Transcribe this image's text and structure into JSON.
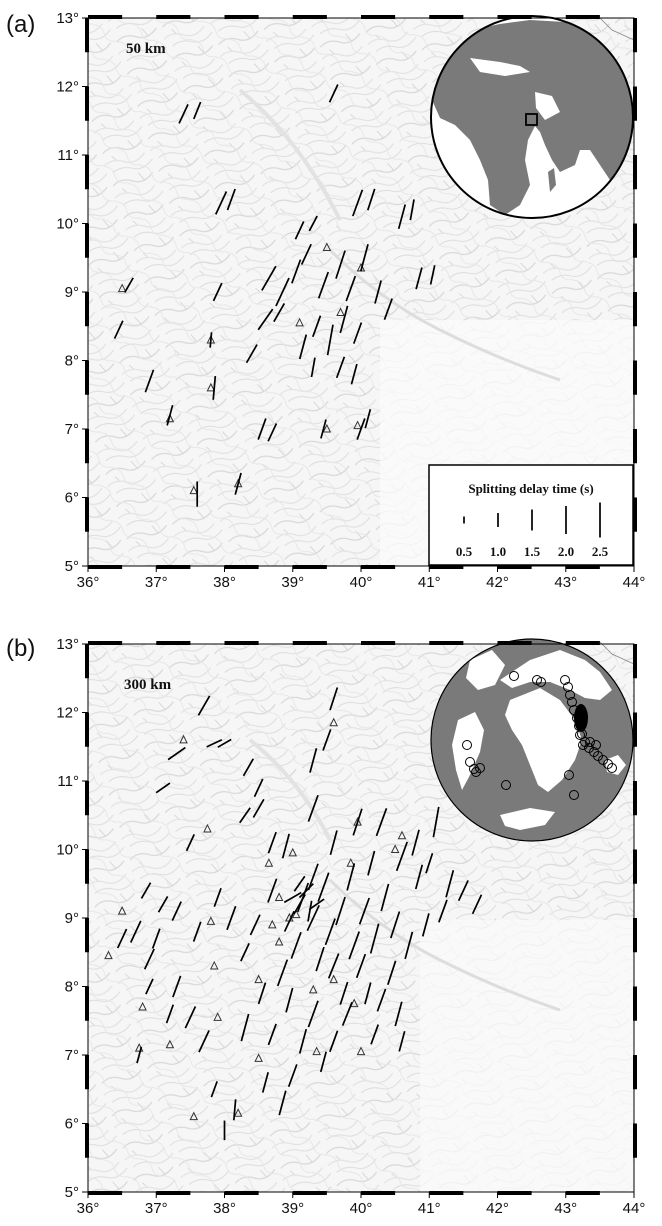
{
  "figure": {
    "panels": [
      {
        "id": "a",
        "letter": "(a)",
        "depth_label": "50 km",
        "x_ticks": [
          "36°",
          "37°",
          "38°",
          "39°",
          "40°",
          "41°",
          "42°",
          "43°",
          "44°"
        ],
        "y_ticks": [
          "5°",
          "6°",
          "7°",
          "8°",
          "9°",
          "10°",
          "11°",
          "12°",
          "13°"
        ],
        "inset": {
          "kind": "globe-location",
          "marker": "study-area-box"
        },
        "legend": {
          "title": "Splitting delay time (s)",
          "values": [
            "0.5",
            "1.0",
            "1.5",
            "2.0",
            "2.5"
          ]
        }
      },
      {
        "id": "b",
        "letter": "(b)",
        "depth_label": "300 km",
        "x_ticks": [
          "36°",
          "37°",
          "38°",
          "39°",
          "40°",
          "41°",
          "42°",
          "43°",
          "44°"
        ],
        "y_ticks": [
          "5°",
          "6°",
          "7°",
          "8°",
          "9°",
          "10°",
          "11°",
          "12°",
          "13°"
        ],
        "inset": {
          "kind": "globe-events",
          "marker": "earthquake-circles"
        }
      }
    ],
    "colors": {
      "land": "#7a7a7a",
      "ocean_globe": "#ffffff",
      "bars": "#000000"
    },
    "map_extent": {
      "lon": [
        36,
        44
      ],
      "lat": [
        5,
        13
      ]
    }
  },
  "stations_a": [
    [
      36.5,
      9.05
    ],
    [
      37.8,
      8.3
    ],
    [
      37.55,
      6.1
    ],
    [
      38.2,
      6.2
    ],
    [
      39.5,
      7.0
    ],
    [
      39.95,
      7.05
    ],
    [
      39.7,
      8.7
    ],
    [
      40.0,
      9.35
    ],
    [
      39.5,
      9.65
    ],
    [
      39.1,
      8.55
    ],
    [
      37.2,
      7.15
    ],
    [
      37.8,
      7.6
    ]
  ],
  "stations_b": [
    [
      36.5,
      9.1
    ],
    [
      36.3,
      8.45
    ],
    [
      36.8,
      7.7
    ],
    [
      36.75,
      7.1
    ],
    [
      37.2,
      7.15
    ],
    [
      37.4,
      11.6
    ],
    [
      37.75,
      10.3
    ],
    [
      37.8,
      8.95
    ],
    [
      37.85,
      8.3
    ],
    [
      37.9,
      7.55
    ],
    [
      37.55,
      6.1
    ],
    [
      38.2,
      6.15
    ],
    [
      38.5,
      8.1
    ],
    [
      38.5,
      6.95
    ],
    [
      38.65,
      9.8
    ],
    [
      38.8,
      9.3
    ],
    [
      38.8,
      8.65
    ],
    [
      38.95,
      9.0
    ],
    [
      38.7,
      8.9
    ],
    [
      39.05,
      9.05
    ],
    [
      39.0,
      9.95
    ],
    [
      39.3,
      7.95
    ],
    [
      39.35,
      7.05
    ],
    [
      39.6,
      11.85
    ],
    [
      39.85,
      9.8
    ],
    [
      39.9,
      7.75
    ],
    [
      39.95,
      10.4
    ],
    [
      40.0,
      7.05
    ],
    [
      40.5,
      10.0
    ],
    [
      40.6,
      10.2
    ],
    [
      39.6,
      8.1
    ]
  ],
  "splits_a": [
    [
      37.4,
      11.6,
      1.5,
      25
    ],
    [
      37.6,
      11.65,
      1.3,
      22
    ],
    [
      39.6,
      11.9,
      1.4,
      25
    ],
    [
      37.95,
      10.3,
      1.8,
      25
    ],
    [
      38.1,
      10.35,
      1.6,
      20
    ],
    [
      39.1,
      9.9,
      1.4,
      25
    ],
    [
      39.3,
      10.0,
      1.2,
      28
    ],
    [
      39.95,
      10.3,
      2.0,
      20
    ],
    [
      40.15,
      10.35,
      1.6,
      18
    ],
    [
      40.6,
      10.1,
      1.8,
      15
    ],
    [
      40.75,
      10.2,
      1.5,
      10
    ],
    [
      36.6,
      9.1,
      1.2,
      30
    ],
    [
      36.45,
      8.45,
      1.4,
      25
    ],
    [
      37.9,
      9.0,
      1.4,
      25
    ],
    [
      38.65,
      9.2,
      2.0,
      30
    ],
    [
      38.85,
      9.0,
      2.2,
      25
    ],
    [
      39.05,
      9.3,
      1.8,
      20
    ],
    [
      39.2,
      9.55,
      1.6,
      25
    ],
    [
      39.45,
      9.1,
      2.0,
      20
    ],
    [
      39.7,
      9.4,
      2.1,
      18
    ],
    [
      39.85,
      9.05,
      1.9,
      20
    ],
    [
      40.05,
      9.5,
      2.0,
      15
    ],
    [
      40.25,
      9.0,
      1.7,
      15
    ],
    [
      40.4,
      8.75,
      1.6,
      20
    ],
    [
      40.85,
      9.2,
      1.6,
      15
    ],
    [
      41.05,
      9.25,
      1.4,
      12
    ],
    [
      38.6,
      8.6,
      1.8,
      35
    ],
    [
      38.8,
      8.7,
      1.5,
      30
    ],
    [
      39.15,
      8.2,
      1.8,
      15
    ],
    [
      39.35,
      8.5,
      1.6,
      20
    ],
    [
      39.55,
      8.3,
      2.2,
      10
    ],
    [
      39.75,
      8.6,
      2.0,
      15
    ],
    [
      39.95,
      8.4,
      1.6,
      20
    ],
    [
      38.4,
      8.1,
      1.5,
      30
    ],
    [
      37.8,
      8.3,
      1.1,
      5
    ],
    [
      39.3,
      7.9,
      1.4,
      10
    ],
    [
      39.7,
      7.9,
      1.6,
      20
    ],
    [
      39.9,
      7.8,
      1.5,
      15
    ],
    [
      36.9,
      7.7,
      1.7,
      20
    ],
    [
      37.2,
      7.2,
      1.5,
      15
    ],
    [
      37.85,
      7.6,
      1.7,
      5
    ],
    [
      38.55,
      7.0,
      1.6,
      20
    ],
    [
      38.7,
      6.95,
      1.4,
      25
    ],
    [
      39.45,
      7.0,
      1.4,
      15
    ],
    [
      40.0,
      7.0,
      1.6,
      20
    ],
    [
      40.1,
      7.15,
      1.4,
      15
    ],
    [
      37.6,
      6.05,
      1.8,
      0
    ],
    [
      38.2,
      6.2,
      1.6,
      15
    ]
  ],
  "splits_b": [
    [
      37.7,
      12.1,
      1.6,
      30
    ],
    [
      37.3,
      11.4,
      1.5,
      55
    ],
    [
      37.1,
      10.9,
      1.2,
      55
    ],
    [
      37.85,
      11.55,
      1.2,
      65
    ],
    [
      38.0,
      11.55,
      1.1,
      60
    ],
    [
      38.35,
      11.2,
      1.4,
      30
    ],
    [
      38.5,
      10.9,
      1.4,
      25
    ],
    [
      38.5,
      10.6,
      1.5,
      30
    ],
    [
      38.3,
      10.5,
      1.3,
      35
    ],
    [
      37.5,
      10.1,
      1.3,
      25
    ],
    [
      39.6,
      12.2,
      1.7,
      18
    ],
    [
      39.3,
      11.3,
      1.8,
      15
    ],
    [
      39.5,
      11.6,
      1.6,
      20
    ],
    [
      39.95,
      10.4,
      2.0,
      18
    ],
    [
      39.3,
      10.6,
      2.0,
      20
    ],
    [
      38.7,
      10.1,
      1.6,
      20
    ],
    [
      38.9,
      10.05,
      1.8,
      15
    ],
    [
      40.3,
      10.4,
      2.1,
      20
    ],
    [
      40.6,
      9.9,
      2.2,
      20
    ],
    [
      40.8,
      10.1,
      1.9,
      15
    ],
    [
      41.1,
      10.4,
      2.2,
      10
    ],
    [
      41.3,
      9.5,
      2.0,
      15
    ],
    [
      41.5,
      9.4,
      1.6,
      25
    ],
    [
      41.7,
      9.2,
      1.5,
      25
    ],
    [
      41.2,
      9.1,
      1.7,
      20
    ],
    [
      40.95,
      8.9,
      1.7,
      15
    ],
    [
      40.7,
      8.6,
      2.0,
      15
    ],
    [
      40.45,
      8.2,
      1.8,
      18
    ],
    [
      40.3,
      7.8,
      1.7,
      20
    ],
    [
      40.55,
      7.6,
      1.8,
      15
    ],
    [
      40.2,
      7.3,
      1.5,
      20
    ],
    [
      40.6,
      7.2,
      1.5,
      15
    ],
    [
      39.8,
      7.6,
      1.8,
      22
    ],
    [
      39.6,
      7.2,
      1.6,
      20
    ],
    [
      39.3,
      7.6,
      2.0,
      20
    ],
    [
      39.15,
      7.2,
      1.8,
      15
    ],
    [
      39.0,
      6.7,
      1.7,
      20
    ],
    [
      38.85,
      6.3,
      1.8,
      15
    ],
    [
      38.6,
      6.6,
      1.5,
      15
    ],
    [
      38.3,
      7.4,
      2.0,
      15
    ],
    [
      38.15,
      6.2,
      1.5,
      5
    ],
    [
      38.0,
      5.9,
      1.4,
      0
    ],
    [
      37.85,
      6.5,
      1.2,
      20
    ],
    [
      37.7,
      7.2,
      1.7,
      25
    ],
    [
      37.5,
      7.55,
      1.7,
      25
    ],
    [
      37.3,
      8.0,
      1.6,
      20
    ],
    [
      36.9,
      8.4,
      1.6,
      25
    ],
    [
      36.7,
      8.8,
      1.7,
      25
    ],
    [
      36.5,
      8.7,
      1.5,
      25
    ],
    [
      37.0,
      8.7,
      1.5,
      20
    ],
    [
      37.1,
      9.2,
      1.3,
      30
    ],
    [
      37.3,
      9.1,
      1.5,
      25
    ],
    [
      36.85,
      9.4,
      1.3,
      30
    ],
    [
      36.75,
      7.0,
      1.2,
      15
    ],
    [
      37.9,
      9.3,
      1.4,
      20
    ],
    [
      38.1,
      9.0,
      1.8,
      20
    ],
    [
      38.3,
      8.5,
      1.4,
      25
    ],
    [
      38.45,
      8.9,
      1.6,
      25
    ],
    [
      38.7,
      9.4,
      1.8,
      20
    ],
    [
      38.85,
      8.2,
      2.0,
      20
    ],
    [
      38.95,
      7.8,
      1.8,
      15
    ],
    [
      39.05,
      8.6,
      2.0,
      20
    ],
    [
      39.15,
      9.3,
      2.2,
      20
    ],
    [
      39.3,
      9.0,
      2.0,
      25
    ],
    [
      39.45,
      9.45,
      2.2,
      20
    ],
    [
      39.55,
      8.8,
      2.0,
      20
    ],
    [
      39.7,
      9.1,
      2.1,
      18
    ],
    [
      39.85,
      9.6,
      2.0,
      15
    ],
    [
      39.9,
      8.6,
      2.1,
      20
    ],
    [
      40.05,
      9.1,
      2.0,
      20
    ],
    [
      40.2,
      8.7,
      2.2,
      15
    ],
    [
      40.35,
      9.3,
      2.0,
      15
    ],
    [
      40.5,
      8.9,
      2.0,
      18
    ],
    [
      40.15,
      9.8,
      1.8,
      15
    ],
    [
      39.6,
      10.1,
      1.8,
      15
    ],
    [
      39.3,
      9.6,
      2.0,
      20
    ],
    [
      39.1,
      9.2,
      1.6,
      30
    ],
    [
      39.2,
      9.4,
      1.4,
      45
    ],
    [
      39.0,
      9.3,
      1.4,
      60
    ],
    [
      39.25,
      9.1,
      1.5,
      10
    ],
    [
      39.1,
      9.5,
      1.3,
      35
    ],
    [
      39.35,
      9.2,
      1.3,
      55
    ],
    [
      38.95,
      8.95,
      1.6,
      25
    ],
    [
      39.4,
      8.4,
      1.8,
      18
    ],
    [
      39.6,
      8.3,
      1.9,
      22
    ],
    [
      39.75,
      7.9,
      1.7,
      18
    ],
    [
      40.0,
      8.3,
      1.8,
      20
    ],
    [
      40.1,
      7.9,
      1.6,
      15
    ],
    [
      37.6,
      8.8,
      1.5,
      20
    ],
    [
      37.2,
      7.6,
      1.4,
      20
    ],
    [
      36.9,
      8.0,
      1.2,
      25
    ],
    [
      38.55,
      7.9,
      1.6,
      18
    ],
    [
      38.7,
      7.3,
      1.6,
      20
    ],
    [
      39.45,
      6.9,
      1.5,
      15
    ],
    [
      40.85,
      9.6,
      1.8,
      15
    ],
    [
      41.0,
      9.8,
      1.5,
      18
    ]
  ]
}
